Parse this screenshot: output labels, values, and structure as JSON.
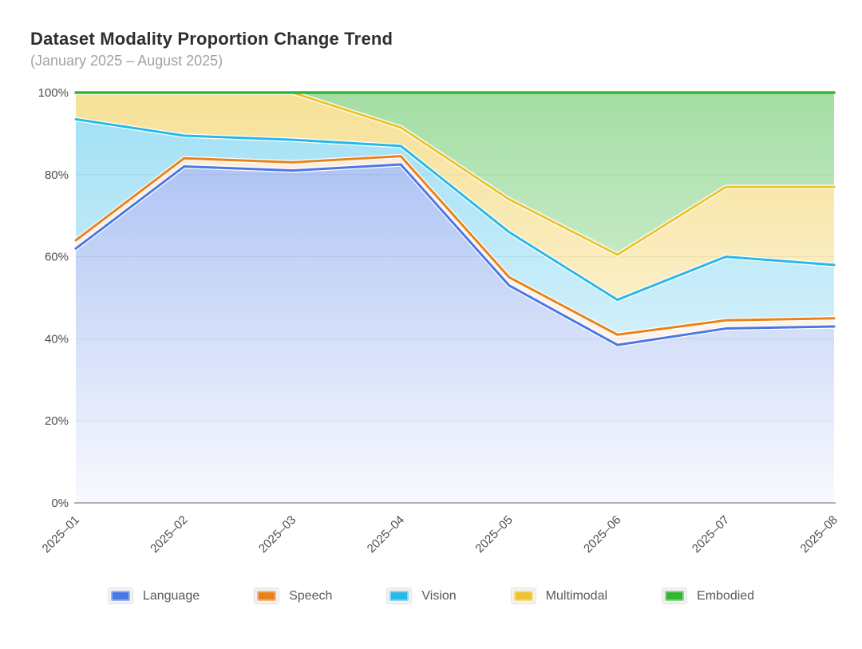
{
  "chart_data": {
    "type": "area",
    "stacked": true,
    "title": "Dataset Modality Proportion Change Trend",
    "subtitle": "(January 2025 – August 2025)",
    "x_categories": [
      "2025–01",
      "2025–02",
      "2025–03",
      "2025–04",
      "2025–05",
      "2025–06",
      "2025–07",
      "2025–08"
    ],
    "y_ticks": [
      "0%",
      "20%",
      "40%",
      "60%",
      "80%",
      "100%"
    ],
    "ylim": [
      0,
      100
    ],
    "grid": true,
    "legend_position": "bottom",
    "x_label_rotation_deg": 45,
    "note": "Proportion (percent-stacked) area chart. line_values_cumulative are the plotted boundary-line positions on the y-axis; share_values are each modality's own percentage share.",
    "series": [
      {
        "name": "Language",
        "color": "#4a78e6",
        "line_values_cumulative": [
          62,
          82,
          81,
          82.5,
          53,
          38.5,
          42.5,
          43
        ],
        "share_values": [
          62,
          82,
          81,
          82.5,
          53,
          38.5,
          42.5,
          43
        ]
      },
      {
        "name": "Speech",
        "color": "#e8831c",
        "line_values_cumulative": [
          64,
          84,
          83,
          84.5,
          55,
          41,
          44.5,
          45
        ],
        "share_values": [
          2,
          2,
          2,
          2,
          2,
          2.5,
          2,
          2
        ]
      },
      {
        "name": "Vision",
        "color": "#29b8e8",
        "line_values_cumulative": [
          93.5,
          89.5,
          88.5,
          87,
          66,
          49.5,
          60,
          58
        ],
        "share_values": [
          29.5,
          5.5,
          5.5,
          2.5,
          11,
          8.5,
          15.5,
          13
        ]
      },
      {
        "name": "Multimodal",
        "color": "#eec32f",
        "line_values_cumulative": [
          100,
          100,
          100,
          91.5,
          74,
          60.5,
          77,
          77
        ],
        "share_values": [
          6.5,
          10.5,
          11.5,
          4.5,
          8,
          11,
          17,
          19
        ]
      },
      {
        "name": "Embodied",
        "color": "#35b534",
        "line_values_cumulative": [
          100,
          100,
          100,
          100,
          100,
          100,
          100,
          100
        ],
        "share_values": [
          0,
          0,
          0,
          8.5,
          26,
          39.5,
          23,
          23
        ]
      }
    ],
    "axis_color": "#999999",
    "gridline_color": "#e9e9e9",
    "tick_label_color": "#4d4d4d"
  }
}
